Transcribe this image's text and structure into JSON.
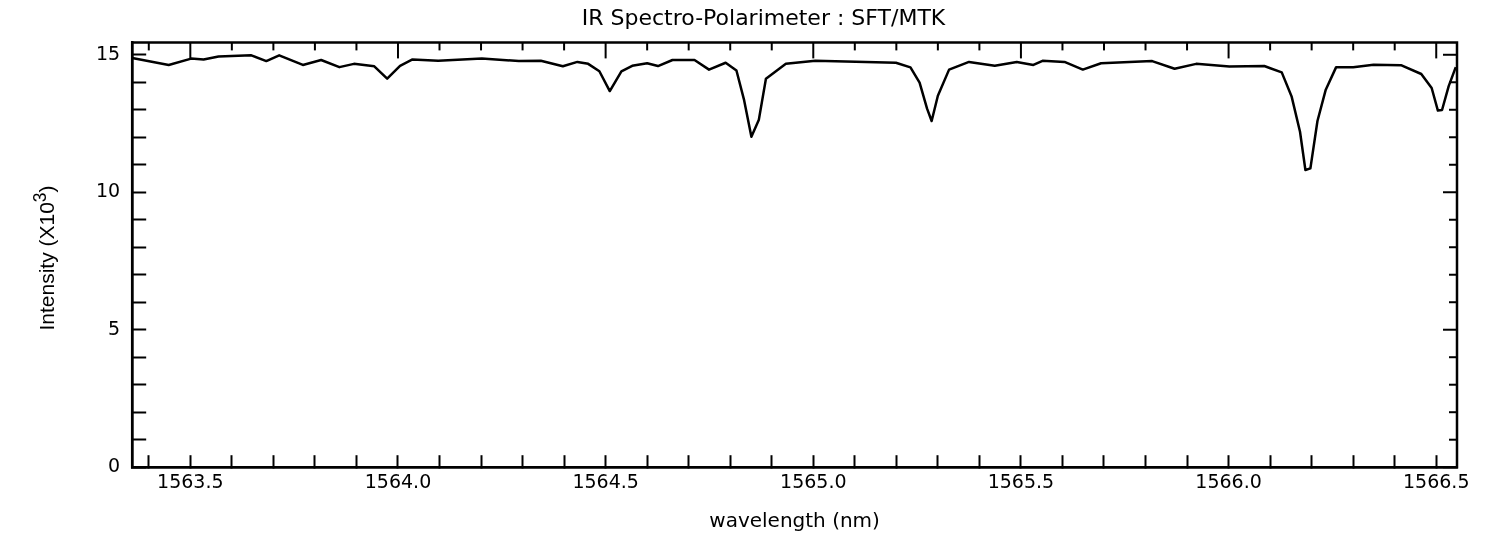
{
  "chart_data": {
    "type": "line",
    "title": "IR Spectro-Polarimeter : SFT/MTK",
    "xlabel": "wavelength (nm)",
    "ylabel": "Intensity (X10$^{3}$)",
    "x": [
      1563.36,
      1563.448,
      1563.502,
      1563.532,
      1563.568,
      1563.647,
      1563.683,
      1563.714,
      1563.771,
      1563.815,
      1563.859,
      1563.894,
      1563.943,
      1563.974,
      1564.005,
      1564.035,
      1564.097,
      1564.202,
      1564.291,
      1564.344,
      1564.397,
      1564.432,
      1564.458,
      1564.485,
      1564.51,
      1564.538,
      1564.564,
      1564.6,
      1564.626,
      1564.661,
      1564.714,
      1564.749,
      1564.789,
      1564.815,
      1564.833,
      1564.851,
      1564.869,
      1564.886,
      1564.934,
      1565.005,
      1565.199,
      1565.234,
      1565.256,
      1565.274,
      1565.285,
      1565.3,
      1565.327,
      1565.375,
      1565.437,
      1565.49,
      1565.53,
      1565.552,
      1565.605,
      1565.649,
      1565.693,
      1565.816,
      1565.87,
      1565.922,
      1566.002,
      1566.086,
      1566.128,
      1566.152,
      1566.172,
      1566.185,
      1566.197,
      1566.214,
      1566.234,
      1566.259,
      1566.3,
      1566.349,
      1566.415,
      1566.464,
      1566.489,
      1566.504,
      1566.514,
      1566.53,
      1566.547
    ],
    "series": [
      {
        "color": "#000000",
        "values": [
          14.88,
          14.63,
          14.86,
          14.83,
          14.94,
          14.98,
          14.77,
          14.98,
          14.63,
          14.81,
          14.55,
          14.67,
          14.58,
          14.13,
          14.6,
          14.83,
          14.78,
          14.86,
          14.77,
          14.78,
          14.58,
          14.74,
          14.67,
          14.4,
          13.68,
          14.4,
          14.6,
          14.69,
          14.59,
          14.81,
          14.81,
          14.46,
          14.71,
          14.43,
          13.38,
          12.02,
          12.64,
          14.13,
          14.67,
          14.78,
          14.71,
          14.54,
          13.99,
          13.04,
          12.59,
          13.51,
          14.46,
          14.74,
          14.6,
          14.74,
          14.63,
          14.78,
          14.74,
          14.46,
          14.69,
          14.77,
          14.49,
          14.67,
          14.57,
          14.59,
          14.36,
          13.47,
          12.2,
          10.81,
          10.87,
          12.59,
          13.73,
          14.55,
          14.55,
          14.64,
          14.62,
          14.3,
          13.79,
          12.97,
          12.99,
          13.86,
          14.55
        ]
      }
    ],
    "xlim": [
      1563.36,
      1566.55
    ],
    "xticks": [
      {
        "value": 1563.4,
        "label": null
      },
      {
        "value": 1563.5,
        "label": "1563.5"
      },
      {
        "value": 1563.6,
        "label": null
      },
      {
        "value": 1563.7,
        "label": null
      },
      {
        "value": 1563.8,
        "label": null
      },
      {
        "value": 1563.9,
        "label": null
      },
      {
        "value": 1564.0,
        "label": "1564.0"
      },
      {
        "value": 1564.1,
        "label": null
      },
      {
        "value": 1564.2,
        "label": null
      },
      {
        "value": 1564.3,
        "label": null
      },
      {
        "value": 1564.4,
        "label": null
      },
      {
        "value": 1564.5,
        "label": "1564.5"
      },
      {
        "value": 1564.6,
        "label": null
      },
      {
        "value": 1564.7,
        "label": null
      },
      {
        "value": 1564.8,
        "label": null
      },
      {
        "value": 1564.9,
        "label": null
      },
      {
        "value": 1565.0,
        "label": "1565.0"
      },
      {
        "value": 1565.1,
        "label": null
      },
      {
        "value": 1565.2,
        "label": null
      },
      {
        "value": 1565.3,
        "label": null
      },
      {
        "value": 1565.4,
        "label": null
      },
      {
        "value": 1565.5,
        "label": "1565.5"
      },
      {
        "value": 1565.6,
        "label": null
      },
      {
        "value": 1565.7,
        "label": null
      },
      {
        "value": 1565.8,
        "label": null
      },
      {
        "value": 1565.9,
        "label": null
      },
      {
        "value": 1566.0,
        "label": "1566.0"
      },
      {
        "value": 1566.1,
        "label": null
      },
      {
        "value": 1566.2,
        "label": null
      },
      {
        "value": 1566.3,
        "label": null
      },
      {
        "value": 1566.4,
        "label": null
      },
      {
        "value": 1566.5,
        "label": "1566.5"
      }
    ],
    "ylim": [
      0,
      15.45
    ],
    "yticks": [
      0,
      {
        "value": 1,
        "label": null
      },
      {
        "value": 2,
        "label": null
      },
      {
        "value": 3,
        "label": null
      },
      {
        "value": 4,
        "label": null
      },
      5,
      {
        "value": 6,
        "label": null
      },
      {
        "value": 7,
        "label": null
      },
      {
        "value": 8,
        "label": null
      },
      {
        "value": 9,
        "label": null
      },
      10,
      {
        "value": 11,
        "label": null
      },
      {
        "value": 12,
        "label": null
      },
      {
        "value": 13,
        "label": null
      },
      {
        "value": 14,
        "label": null
      },
      15
    ],
    "grid": false,
    "legend": false,
    "marker": "none",
    "line_style": "solid"
  }
}
